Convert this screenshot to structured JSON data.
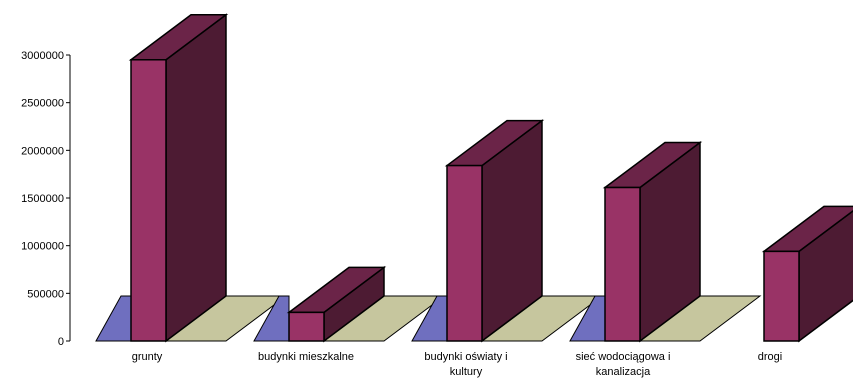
{
  "chart_data": {
    "type": "bar",
    "style": "3d",
    "categories": [
      "grunty",
      "budynki mieszkalne",
      "budynki oświaty i kultury",
      "sieć wodociągowa i kanalizacja",
      "drogi"
    ],
    "values": [
      2950000,
      300000,
      1840000,
      1610000,
      940000
    ],
    "yticks": [
      "0",
      "500000",
      "1000000",
      "1500000",
      "2000000",
      "2500000",
      "3000000"
    ],
    "ylim": [
      0,
      3000000
    ],
    "grid": false,
    "title": "",
    "xlabel": "",
    "ylabel": "",
    "colors": {
      "bar_front": "#993366",
      "bar_top": "#6b2448",
      "bar_side": "#4d1b33",
      "base_left": "#6f6fbf",
      "base_right": "#c6c69e",
      "outline": "#000000"
    }
  }
}
